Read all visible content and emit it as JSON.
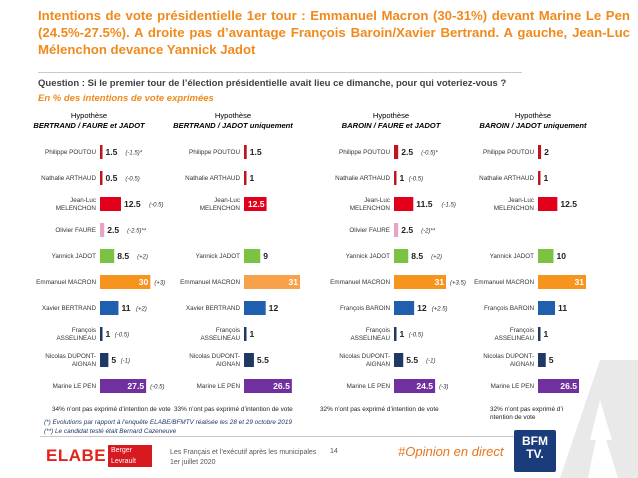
{
  "header": {
    "title": "Intentions de vote présidentielle 1er tour : Emmanuel Macron (30-31%) devant Marine Le Pen (24.5%-27.5%). A droite pas d’avantage François Baroin/Xavier Bertrand. A gauche, Jean-Luc Mélenchon devance Yannick Jadot",
    "question": "Question : Si le premier tour de l’élection présidentielle avait lieu ce dimanche, pour qui voteriez-vous ?",
    "subtitle": "En % des intentions de vote exprimées"
  },
  "colors": {
    "accent": "#f08a1c",
    "navy": "#1f3864"
  },
  "chart_data": {
    "type": "bar",
    "orientation": "horizontal",
    "scale_max": 31,
    "panels": [
      {
        "heading": "Hypothèse",
        "subheading": "BERTRAND / FAURE et JADOT",
        "abstention": "34% n’ont pas exprimé d’intention de vote",
        "rows": [
          {
            "candidate": "Philippe POUTOU",
            "value": 1.5,
            "label": "1.5",
            "change": "(-1.5)*",
            "color": "#c0141e"
          },
          {
            "candidate": "Nathalie ARTHAUD",
            "value": 0.5,
            "label": "0.5",
            "change": "(-0.5)",
            "color": "#c0141e"
          },
          {
            "candidate": "Jean-Luc MELENCHON",
            "value": 12.5,
            "label": "12.5",
            "change": "(-0.5)",
            "color": "#e2001a"
          },
          {
            "candidate": "Olivier FAURE",
            "value": 2.5,
            "label": "2.5",
            "change": "(-2.5)**",
            "color": "#e8a3c6"
          },
          {
            "candidate": "Yannick JADOT",
            "value": 8.5,
            "label": "8.5",
            "change": "(+2)",
            "color": "#7cc243"
          },
          {
            "candidate": "Emmanuel MACRON",
            "value": 30,
            "label": "30",
            "change": "(+3)",
            "color": "#f7941d"
          },
          {
            "candidate": "Xavier BERTRAND",
            "value": 11,
            "label": "11",
            "change": "(+2)",
            "color": "#1f5fae"
          },
          {
            "candidate": "François ASSELINEAU",
            "value": 1,
            "label": "1",
            "change": "(-0.5)",
            "color": "#1f3864"
          },
          {
            "candidate": "Nicolas DUPONT-AIGNAN",
            "value": 5,
            "label": "5",
            "change": "(-1)",
            "color": "#1f3864"
          },
          {
            "candidate": "Marine LE PEN",
            "value": 27.5,
            "label": "27.5",
            "change": "(-0.5)",
            "color": "#7030a0"
          }
        ]
      },
      {
        "heading": "Hypothèse",
        "subheading": "BERTRAND / JADOT uniquement",
        "abstention": "33% n’ont pas exprimé d’intention de vote",
        "rows": [
          {
            "candidate": "Philippe POUTOU",
            "value": 1.5,
            "label": "1.5",
            "change": "",
            "color": "#c0141e"
          },
          {
            "candidate": "Nathalie ARTHAUD",
            "value": 1,
            "label": "1",
            "change": "",
            "color": "#c0141e"
          },
          {
            "candidate": "Jean-Luc MELENCHON",
            "value": 12.5,
            "label": "12.5",
            "change": "",
            "color": "#e2001a"
          },
          {
            "candidate": "",
            "value": 0,
            "label": "",
            "change": "",
            "color": "#ffffff"
          },
          {
            "candidate": "Yannick JADOT",
            "value": 9,
            "label": "9",
            "change": "",
            "color": "#7cc243"
          },
          {
            "candidate": "Emmanuel MACRON",
            "value": 31,
            "label": "31",
            "change": "",
            "color": "#f7a14a"
          },
          {
            "candidate": "Xavier BERTRAND",
            "value": 12,
            "label": "12",
            "change": "",
            "color": "#1f5fae"
          },
          {
            "candidate": "François ASSELINEAU",
            "value": 1,
            "label": "1",
            "change": "",
            "color": "#1f3864"
          },
          {
            "candidate": "Nicolas DUPONT-AIGNAN",
            "value": 5.5,
            "label": "5.5",
            "change": "",
            "color": "#1f3864"
          },
          {
            "candidate": "Marine LE PEN",
            "value": 26.5,
            "label": "26.5",
            "change": "",
            "color": "#7030a0"
          }
        ]
      },
      {
        "heading": "Hypothèse",
        "subheading": "BAROIN / FAURE et JADOT",
        "abstention": "32% n’ont pas exprimé d’intention de vote",
        "rows": [
          {
            "candidate": "Philippe POUTOU",
            "value": 2.5,
            "label": "2.5",
            "change": "(-0.5)*",
            "color": "#c0141e"
          },
          {
            "candidate": "Nathalie ARTHAUD",
            "value": 1,
            "label": "1",
            "change": "(-0.5)",
            "color": "#c0141e"
          },
          {
            "candidate": "Jean-Luc MELENCHON",
            "value": 11.5,
            "label": "11.5",
            "change": "(-1.5)",
            "color": "#e2001a"
          },
          {
            "candidate": "Olivier FAURE",
            "value": 2.5,
            "label": "2.5",
            "change": "(-2)**",
            "color": "#e8a3c6"
          },
          {
            "candidate": "Yannick JADOT",
            "value": 8.5,
            "label": "8.5",
            "change": "(+2)",
            "color": "#7cc243"
          },
          {
            "candidate": "Emmanuel MACRON",
            "value": 31,
            "label": "31",
            "change": "(+3.5)",
            "color": "#f7941d"
          },
          {
            "candidate": "François BAROIN",
            "value": 12,
            "label": "12",
            "change": "(+2.5)",
            "color": "#1f5fae"
          },
          {
            "candidate": "François ASSELINEAU",
            "value": 1,
            "label": "1",
            "change": "(-0.5)",
            "color": "#1f3864"
          },
          {
            "candidate": "Nicolas DUPONT-AIGNAN",
            "value": 5.5,
            "label": "5.5",
            "change": "(-1)",
            "color": "#1f3864"
          },
          {
            "candidate": "Marine LE PEN",
            "value": 24.5,
            "label": "24.5",
            "change": "(-3)",
            "color": "#7030a0"
          }
        ]
      },
      {
        "heading": "Hypothèse",
        "subheading": "BAROIN / JADOT uniquement",
        "abstention": "32% n’ont pas exprimé d’intention de vote",
        "rows": [
          {
            "candidate": "Philippe POUTOU",
            "value": 2,
            "label": "2",
            "change": "",
            "color": "#c0141e"
          },
          {
            "candidate": "Nathalie ARTHAUD",
            "value": 1,
            "label": "1",
            "change": "",
            "color": "#c0141e"
          },
          {
            "candidate": "Jean-Luc MELENCHON",
            "value": 12.5,
            "label": "12.5",
            "change": "",
            "color": "#e2001a"
          },
          {
            "candidate": "",
            "value": 0,
            "label": "",
            "change": "",
            "color": "#ffffff"
          },
          {
            "candidate": "Yannick JADOT",
            "value": 10,
            "label": "10",
            "change": "",
            "color": "#7cc243"
          },
          {
            "candidate": "Emmanuel MACRON",
            "value": 31,
            "label": "31",
            "change": "",
            "color": "#f7941d"
          },
          {
            "candidate": "François BAROIN",
            "value": 11,
            "label": "11",
            "change": "",
            "color": "#1f5fae"
          },
          {
            "candidate": "François ASSELINEAU",
            "value": 1,
            "label": "1",
            "change": "",
            "color": "#1f3864"
          },
          {
            "candidate": "Nicolas DUPONT-AIGNAN",
            "value": 5,
            "label": "5",
            "change": "",
            "color": "#1f3864"
          },
          {
            "candidate": "Marine LE PEN",
            "value": 26.5,
            "label": "26.5",
            "change": "",
            "color": "#7030a0"
          }
        ]
      }
    ]
  },
  "notes": {
    "note1": "(*) Evolutions par rapport à l’enquête ELABE/BFMTV réalisée les 28 et 29 octobre 2019",
    "note2": "(**) Le candidat testé était Bernard Cazeneuve"
  },
  "footer": {
    "logo_elabe": "ELABE",
    "logo_bl_1": "Berger",
    "logo_bl_2": "Levrault",
    "text_1": "Les Français et l’exécutif après les municipales",
    "text_2": "1er juillet 2020",
    "page": "14",
    "hashtag": "#Opinion en direct",
    "channel_1": "BFM",
    "channel_2": "TV."
  }
}
